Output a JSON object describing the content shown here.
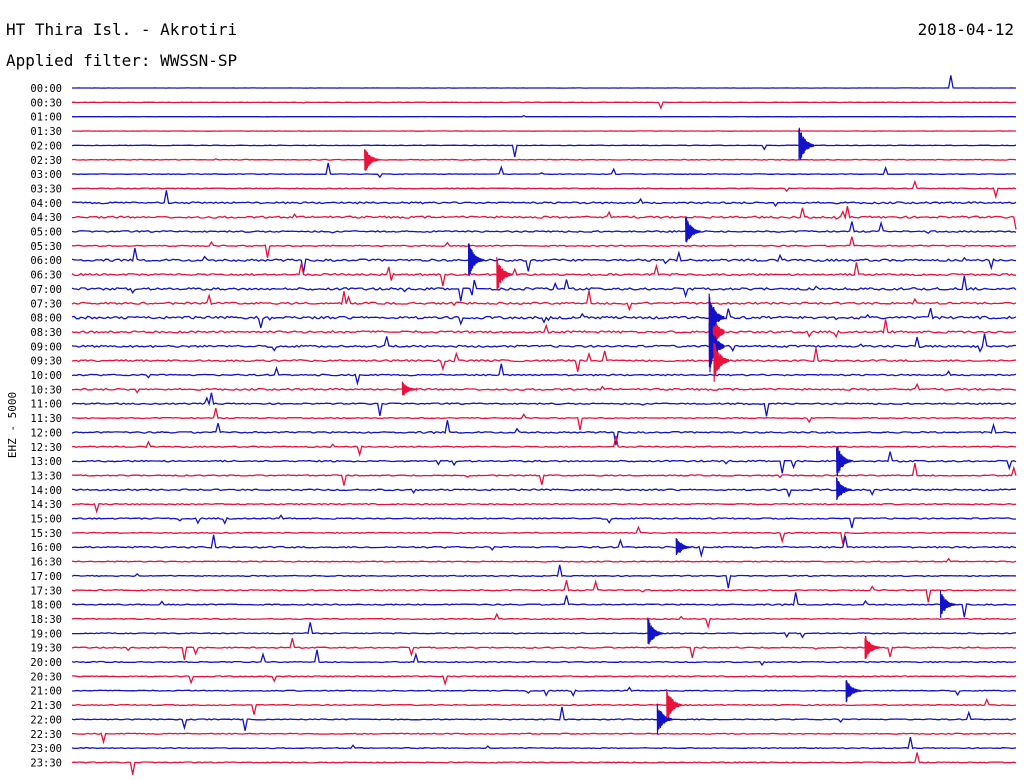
{
  "header": {
    "station": "HT Thira Isl. - Akrotiri",
    "date": "2018-04-12",
    "filter": "Applied filter: WWSSN-SP"
  },
  "chart_data": {
    "type": "line",
    "title": "HT Thira Isl. - Akrotiri",
    "ylabel": "EHZ - 5000",
    "row_labels": [
      "00:00",
      "00:30",
      "01:00",
      "01:30",
      "02:00",
      "02:30",
      "03:00",
      "03:30",
      "04:00",
      "04:30",
      "05:00",
      "05:30",
      "06:00",
      "06:30",
      "07:00",
      "07:30",
      "08:00",
      "08:30",
      "09:00",
      "09:30",
      "10:00",
      "10:30",
      "11:00",
      "11:30",
      "12:00",
      "12:30",
      "13:00",
      "13:30",
      "14:00",
      "14:30",
      "15:00",
      "15:30",
      "16:00",
      "16:30",
      "17:00",
      "17:30",
      "18:00",
      "18:30",
      "19:00",
      "19:30",
      "20:00",
      "20:30",
      "21:00",
      "21:30",
      "22:00",
      "22:30",
      "23:00",
      "23:30"
    ],
    "colors": [
      "#1212c8",
      "#e8123c"
    ],
    "activity": [
      0.05,
      0.12,
      0.05,
      0.08,
      0.15,
      0.22,
      0.18,
      0.25,
      0.55,
      0.6,
      0.45,
      0.35,
      0.65,
      0.6,
      0.7,
      0.6,
      0.75,
      0.65,
      0.6,
      0.55,
      0.45,
      0.55,
      0.4,
      0.3,
      0.45,
      0.35,
      0.45,
      0.35,
      0.45,
      0.35,
      0.4,
      0.3,
      0.45,
      0.3,
      0.3,
      0.35,
      0.35,
      0.3,
      0.3,
      0.35,
      0.3,
      0.3,
      0.3,
      0.3,
      0.3,
      0.3,
      0.25,
      0.3
    ],
    "events": [
      {
        "row": 17,
        "t": 0.675,
        "amp": 2.6
      },
      {
        "row": 18,
        "t": 0.675,
        "amp": 2.2
      },
      {
        "row": 19,
        "t": 0.68,
        "amp": 1.6
      },
      {
        "row": 16,
        "t": 0.675,
        "amp": 1.8
      },
      {
        "row": 4,
        "t": 0.77,
        "amp": 1.5
      },
      {
        "row": 5,
        "t": 0.31,
        "amp": 1.0
      },
      {
        "row": 10,
        "t": 0.65,
        "amp": 1.2
      },
      {
        "row": 12,
        "t": 0.42,
        "amp": 1.4
      },
      {
        "row": 13,
        "t": 0.45,
        "amp": 1.3
      },
      {
        "row": 21,
        "t": 0.35,
        "amp": 0.6
      },
      {
        "row": 26,
        "t": 0.81,
        "amp": 1.3
      },
      {
        "row": 28,
        "t": 0.81,
        "amp": 1.0
      },
      {
        "row": 32,
        "t": 0.64,
        "amp": 0.8
      },
      {
        "row": 38,
        "t": 0.61,
        "amp": 1.2
      },
      {
        "row": 39,
        "t": 0.84,
        "amp": 1.0
      },
      {
        "row": 43,
        "t": 0.63,
        "amp": 1.3
      },
      {
        "row": 44,
        "t": 0.62,
        "amp": 1.2
      },
      {
        "row": 42,
        "t": 0.82,
        "amp": 0.9
      },
      {
        "row": 36,
        "t": 0.92,
        "amp": 1.0
      }
    ]
  }
}
